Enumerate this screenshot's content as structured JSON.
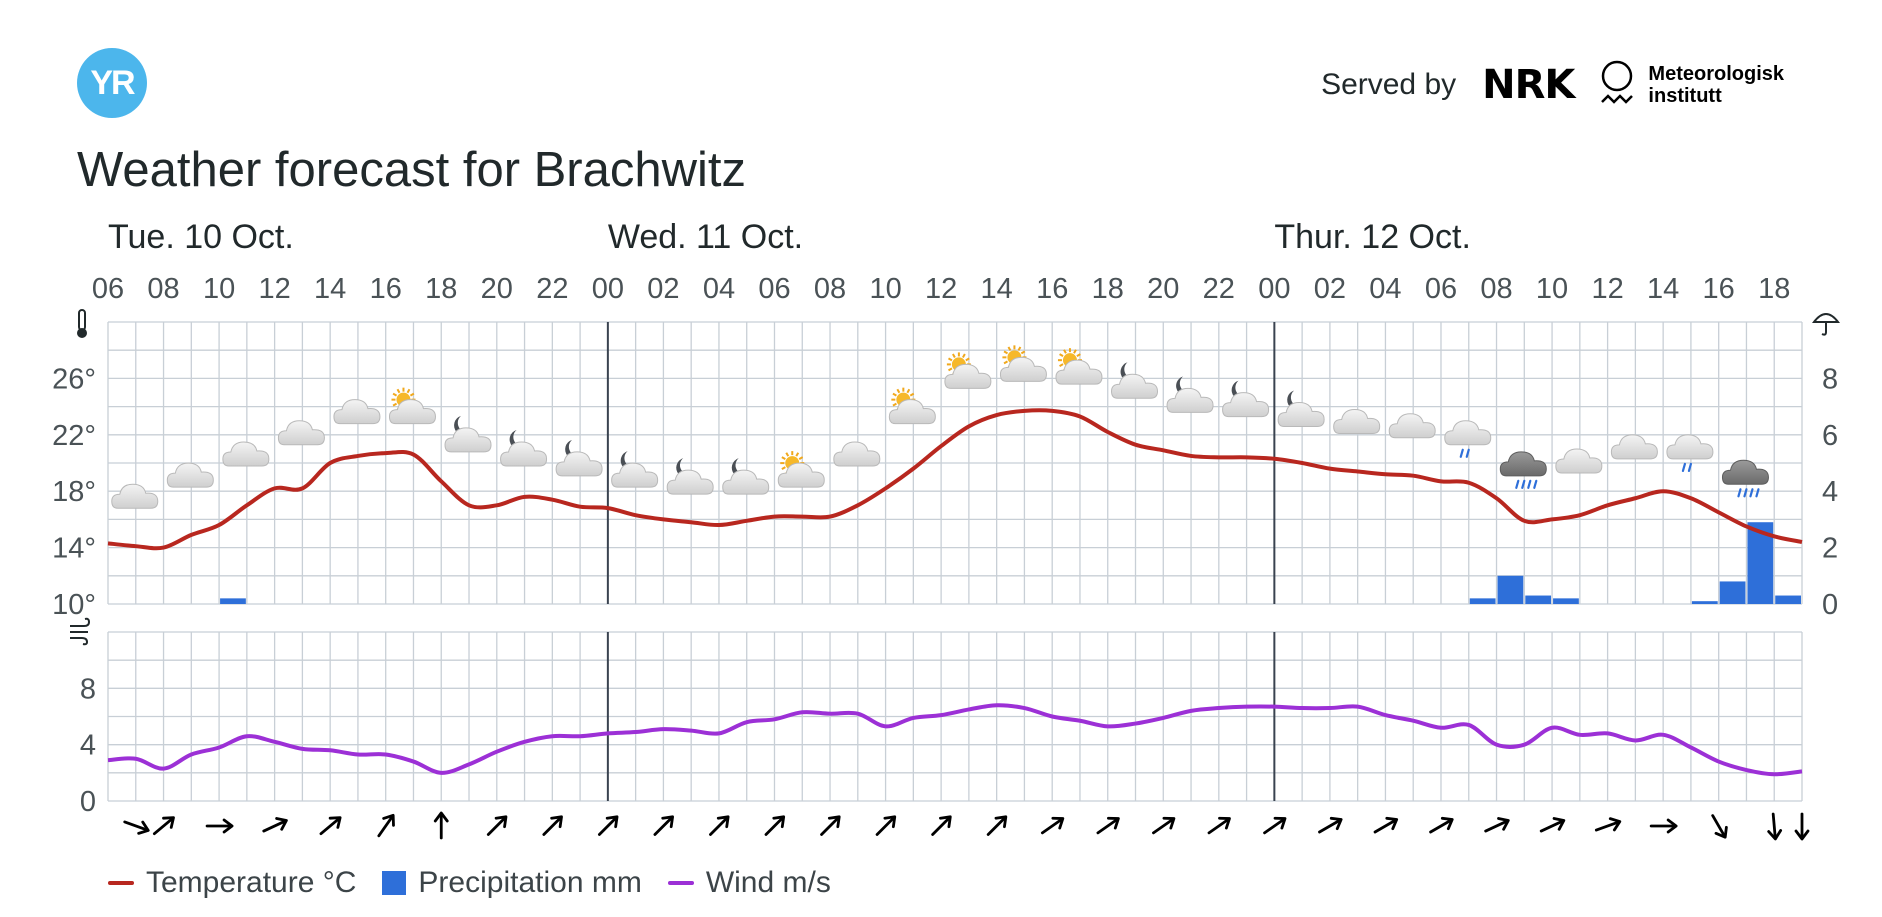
{
  "header": {
    "logo_text": "YR",
    "served_by": "Served by",
    "nrk_logo": "NRK",
    "met_line1": "Meteorologisk",
    "met_line2": "institutt",
    "title": "Weather forecast for Brachwitz"
  },
  "legend": [
    {
      "label": "Temperature °C",
      "color": "#b8271f",
      "kind": "line"
    },
    {
      "label": "Precipitation mm",
      "color": "#2e6fd9",
      "kind": "box"
    },
    {
      "label": "Wind m/s",
      "color": "#9c30d6",
      "kind": "line"
    }
  ],
  "chart_data": {
    "type": "line",
    "title": "Weather forecast for Brachwitz",
    "x_start_hour": 6,
    "x_end_hour": 67,
    "days": [
      {
        "label": "Tue. 10 Oct.",
        "start_hour": 6
      },
      {
        "label": "Wed. 11 Oct.",
        "start_hour": 24
      },
      {
        "label": "Thur. 12 Oct.",
        "start_hour": 48
      }
    ],
    "hour_ticks": [
      "06",
      "08",
      "10",
      "12",
      "14",
      "16",
      "18",
      "20",
      "22",
      "00",
      "02",
      "04",
      "06",
      "08",
      "10",
      "12",
      "14",
      "16",
      "18",
      "20",
      "22",
      "00",
      "02",
      "04",
      "06",
      "08",
      "10",
      "12",
      "14",
      "16",
      "18"
    ],
    "temperature": {
      "name": "Temperature °C",
      "ylim": [
        10,
        30
      ],
      "ticks": [
        "10°",
        "14°",
        "18°",
        "22°",
        "26°"
      ],
      "x": [
        6,
        7,
        8,
        9,
        10,
        11,
        12,
        13,
        14,
        15,
        16,
        17,
        18,
        19,
        20,
        21,
        22,
        23,
        24,
        25,
        26,
        27,
        28,
        29,
        30,
        31,
        32,
        33,
        34,
        35,
        36,
        37,
        38,
        39,
        40,
        41,
        42,
        43,
        44,
        45,
        46,
        47,
        48,
        49,
        50,
        51,
        52,
        53,
        54,
        55,
        56,
        57,
        58,
        59,
        60,
        61,
        62,
        63,
        64,
        65,
        66,
        67
      ],
      "y": [
        14.3,
        14.1,
        14,
        14.9,
        15.6,
        17,
        18.2,
        18.2,
        20,
        20.5,
        20.7,
        20.6,
        18.7,
        17,
        17,
        17.6,
        17.4,
        16.9,
        16.8,
        16.3,
        16,
        15.8,
        15.6,
        15.9,
        16.2,
        16.2,
        16.2,
        17,
        18.2,
        19.6,
        21.2,
        22.6,
        23.4,
        23.7,
        23.7,
        23.3,
        22.2,
        21.3,
        20.9,
        20.5,
        20.4,
        20.4,
        20.3,
        20,
        19.6,
        19.4,
        19.2,
        19.1,
        18.7,
        18.6,
        17.5,
        15.9,
        16,
        16.3,
        17,
        17.5,
        18,
        17.5,
        16.5,
        15.5,
        14.8,
        14.4
      ]
    },
    "precipitation": {
      "name": "Precipitation mm",
      "ylim": [
        0,
        10
      ],
      "ticks": [
        "0",
        "2",
        "4",
        "6",
        "8"
      ],
      "bars": [
        {
          "hour": 10,
          "value": 0.2
        },
        {
          "hour": 55,
          "value": 0.2
        },
        {
          "hour": 56,
          "value": 1.0
        },
        {
          "hour": 57,
          "value": 0.3
        },
        {
          "hour": 58,
          "value": 0.2
        },
        {
          "hour": 63,
          "value": 0.1
        },
        {
          "hour": 64,
          "value": 0.8
        },
        {
          "hour": 65,
          "value": 2.9
        },
        {
          "hour": 66,
          "value": 0.3
        }
      ]
    },
    "wind": {
      "name": "Wind m/s",
      "ylim": [
        0,
        12
      ],
      "ticks": [
        "0",
        "4",
        "8"
      ],
      "x": [
        6,
        7,
        8,
        9,
        10,
        11,
        12,
        13,
        14,
        15,
        16,
        17,
        18,
        19,
        20,
        21,
        22,
        23,
        24,
        25,
        26,
        27,
        28,
        29,
        30,
        31,
        32,
        33,
        34,
        35,
        36,
        37,
        38,
        39,
        40,
        41,
        42,
        43,
        44,
        45,
        46,
        47,
        48,
        49,
        50,
        51,
        52,
        53,
        54,
        55,
        56,
        57,
        58,
        59,
        60,
        61,
        62,
        63,
        64,
        65,
        66,
        67
      ],
      "y": [
        2.9,
        3,
        2.3,
        3.3,
        3.8,
        4.6,
        4.2,
        3.7,
        3.6,
        3.3,
        3.3,
        2.8,
        2,
        2.6,
        3.5,
        4.2,
        4.6,
        4.6,
        4.8,
        4.9,
        5.1,
        5,
        4.8,
        5.6,
        5.8,
        6.3,
        6.2,
        6.2,
        5.3,
        5.9,
        6.1,
        6.5,
        6.8,
        6.6,
        6,
        5.7,
        5.3,
        5.5,
        5.9,
        6.4,
        6.6,
        6.7,
        6.7,
        6.6,
        6.6,
        6.7,
        6.1,
        5.7,
        5.2,
        5.4,
        4,
        4,
        5.2,
        4.7,
        4.8,
        4.3,
        4.7,
        3.8,
        2.8,
        2.2,
        1.9,
        2.1
      ]
    },
    "weather_symbols": [
      {
        "hour": 7,
        "icon": "cloud-icon",
        "temp": 17.5
      },
      {
        "hour": 9,
        "icon": "cloud-icon",
        "temp": 19
      },
      {
        "hour": 11,
        "icon": "cloud-icon",
        "temp": 20.5
      },
      {
        "hour": 13,
        "icon": "cloud-icon",
        "temp": 22
      },
      {
        "hour": 15,
        "icon": "cloud-icon",
        "temp": 23.5
      },
      {
        "hour": 17,
        "icon": "sun-cloud-icon",
        "temp": 23.5
      },
      {
        "hour": 19,
        "icon": "moon-cloud-icon",
        "temp": 21.5
      },
      {
        "hour": 21,
        "icon": "moon-cloud-icon",
        "temp": 20.5
      },
      {
        "hour": 23,
        "icon": "moon-cloud-icon",
        "temp": 19.8
      },
      {
        "hour": 25,
        "icon": "moon-cloud-icon",
        "temp": 19
      },
      {
        "hour": 27,
        "icon": "moon-cloud-icon",
        "temp": 18.5
      },
      {
        "hour": 29,
        "icon": "moon-cloud-icon",
        "temp": 18.5
      },
      {
        "hour": 31,
        "icon": "sun-cloud-icon",
        "temp": 19
      },
      {
        "hour": 33,
        "icon": "cloud-icon",
        "temp": 20.5
      },
      {
        "hour": 35,
        "icon": "sun-cloud-icon",
        "temp": 23.5
      },
      {
        "hour": 37,
        "icon": "sun-cloud-icon",
        "temp": 26
      },
      {
        "hour": 39,
        "icon": "sun-cloud-icon",
        "temp": 26.5
      },
      {
        "hour": 41,
        "icon": "sun-cloud-icon",
        "temp": 26.3
      },
      {
        "hour": 43,
        "icon": "moon-cloud-icon",
        "temp": 25.3
      },
      {
        "hour": 45,
        "icon": "moon-cloud-icon",
        "temp": 24.3
      },
      {
        "hour": 47,
        "icon": "moon-cloud-icon",
        "temp": 24
      },
      {
        "hour": 49,
        "icon": "moon-cloud-icon",
        "temp": 23.3
      },
      {
        "hour": 51,
        "icon": "cloud-icon",
        "temp": 22.8
      },
      {
        "hour": 53,
        "icon": "cloud-icon",
        "temp": 22.5
      },
      {
        "hour": 55,
        "icon": "rain-cloud-icon",
        "temp": 22
      },
      {
        "hour": 57,
        "icon": "dark-rain-cloud-icon",
        "temp": 19.8
      },
      {
        "hour": 59,
        "icon": "cloud-icon",
        "temp": 20
      },
      {
        "hour": 61,
        "icon": "cloud-icon",
        "temp": 21
      },
      {
        "hour": 63,
        "icon": "rain-cloud-icon",
        "temp": 21
      },
      {
        "hour": 65,
        "icon": "dark-rain-cloud-icon",
        "temp": 19.2
      }
    ],
    "wind_directions_deg": [
      110,
      50,
      90,
      65,
      50,
      35,
      0,
      45,
      45,
      45,
      45,
      45,
      45,
      45,
      45,
      45,
      45,
      55,
      55,
      55,
      55,
      55,
      60,
      60,
      60,
      65,
      65,
      70,
      90,
      150,
      175,
      180
    ],
    "axis_icons": {
      "temperature": "thermometer-icon",
      "precipitation": "umbrella-icon",
      "wind": "wind-icon"
    },
    "grid": true,
    "legend_position": "bottom-left"
  }
}
